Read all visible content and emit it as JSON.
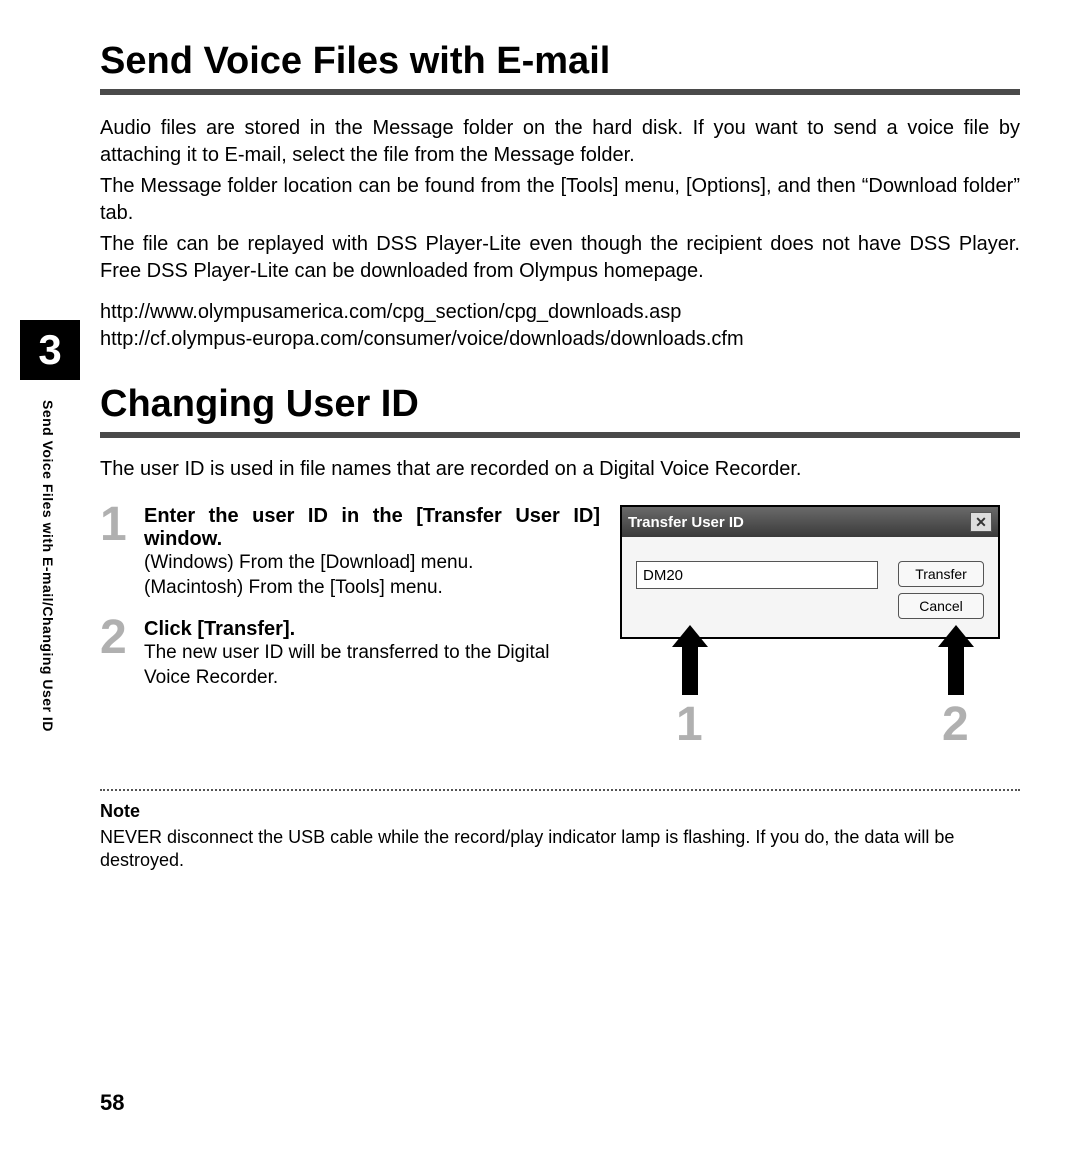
{
  "chapter_number": "3",
  "side_label": "Send Voice Files with E-mail/Changing User ID",
  "page_number": "58",
  "section1": {
    "title": "Send Voice Files with E-mail",
    "p1": "Audio files are stored in the Message folder on the hard disk. If you want to send a voice file by attaching it to E-mail, select the file from the Message folder.",
    "p2": "The Message folder location can be found from the [Tools] menu, [Options], and then “Download folder” tab.",
    "p3": "The file can be replayed with DSS Player-Lite even though the recipient does not have DSS Player. Free DSS Player-Lite can be downloaded from Olympus homepage.",
    "url1": "http://www.olympusamerica.com/cpg_section/cpg_downloads.asp",
    "url2": "http://cf.olympus-europa.com/consumer/voice/downloads/downloads.cfm"
  },
  "section2": {
    "title": "Changing User ID",
    "intro": "The user ID is used in file names that are recorded on a Digital Voice Recorder.",
    "steps": [
      {
        "num": "1",
        "title": "Enter the user ID in the [Transfer User ID] window.",
        "body1": "(Windows) From the [Download] menu.",
        "body2": "(Macintosh) From the [Tools] menu."
      },
      {
        "num": "2",
        "title": "Click [Transfer].",
        "body1": "The new user ID will be transferred to the Digital Voice Recorder.",
        "body2": ""
      }
    ],
    "dialog": {
      "title": "Transfer User ID",
      "input_value": "DM20",
      "transfer_btn": "Transfer",
      "cancel_btn": "Cancel",
      "callout1": "1",
      "callout2": "2"
    },
    "note_heading": "Note",
    "note_body": "NEVER disconnect the USB cable while the record/play indicator lamp is flashing. If you do, the data will be destroyed."
  }
}
